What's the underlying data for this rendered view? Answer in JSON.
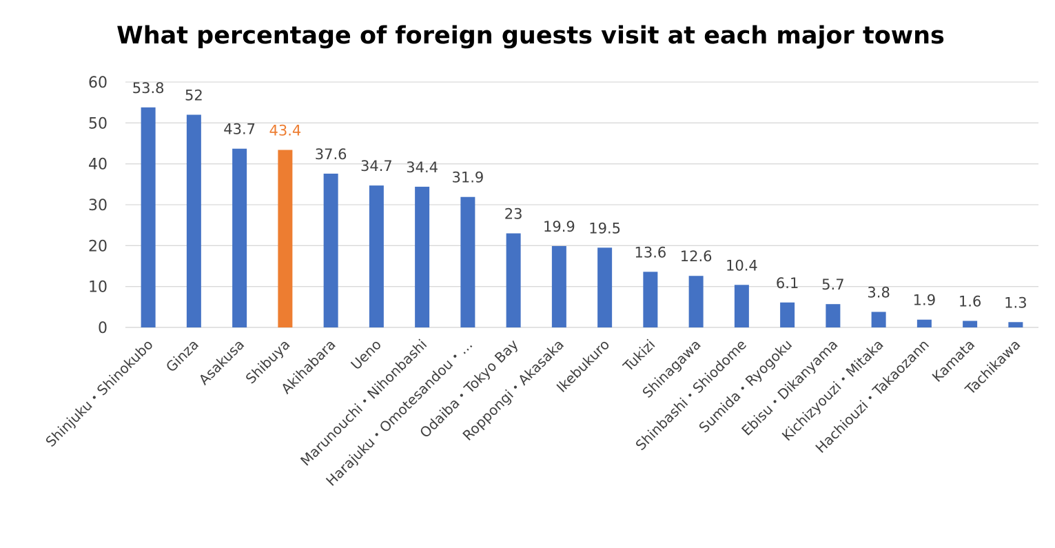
{
  "chart_data": {
    "type": "bar",
    "title": "What percentage of foreign guests visit at each major towns",
    "xlabel": "",
    "ylabel": "",
    "ylim": [
      0,
      60
    ],
    "yticks": [
      0,
      10,
      20,
      30,
      40,
      50,
      60
    ],
    "grid": true,
    "legend": "none",
    "categories": [
      "Shinjuku・Shinokubo",
      "Ginza",
      "Asakusa",
      "Shibuya",
      "Akihabara",
      "Ueno",
      "Marunouchi・Nihonbashi",
      "Harajuku・Omotesandou・…",
      "Odaiba・Tokyo Bay",
      "Roppongi・Akasaka",
      "Ikebukuro",
      "Tukizi",
      "Shinagawa",
      "Shinbashi・Shiodome",
      "Sumida・Ryogoku",
      "Ebisu・Dikanyama",
      "Kichizyouzi・Mitaka",
      "Hachiouzi・Takaozann",
      "Kamata",
      "Tachikawa"
    ],
    "values": [
      53.8,
      52,
      43.7,
      43.4,
      37.6,
      34.7,
      34.4,
      31.9,
      23,
      19.9,
      19.5,
      13.6,
      12.6,
      10.4,
      6.1,
      5.7,
      3.8,
      1.9,
      1.6,
      1.3
    ],
    "data_labels": [
      "53.8",
      "52",
      "43.7",
      "43.4",
      "37.6",
      "34.7",
      "34.4",
      "31.9",
      "23",
      "19.9",
      "19.5",
      "13.6",
      "12.6",
      "10.4",
      "6.1",
      "5.7",
      "3.8",
      "1.9",
      "1.6",
      "1.3"
    ],
    "highlight_index": 3,
    "colors": {
      "bar": "#4472c4",
      "highlight": "#ed7d31",
      "gridline": "#d9d9d9",
      "text": "#404040",
      "title": "#000000"
    }
  }
}
